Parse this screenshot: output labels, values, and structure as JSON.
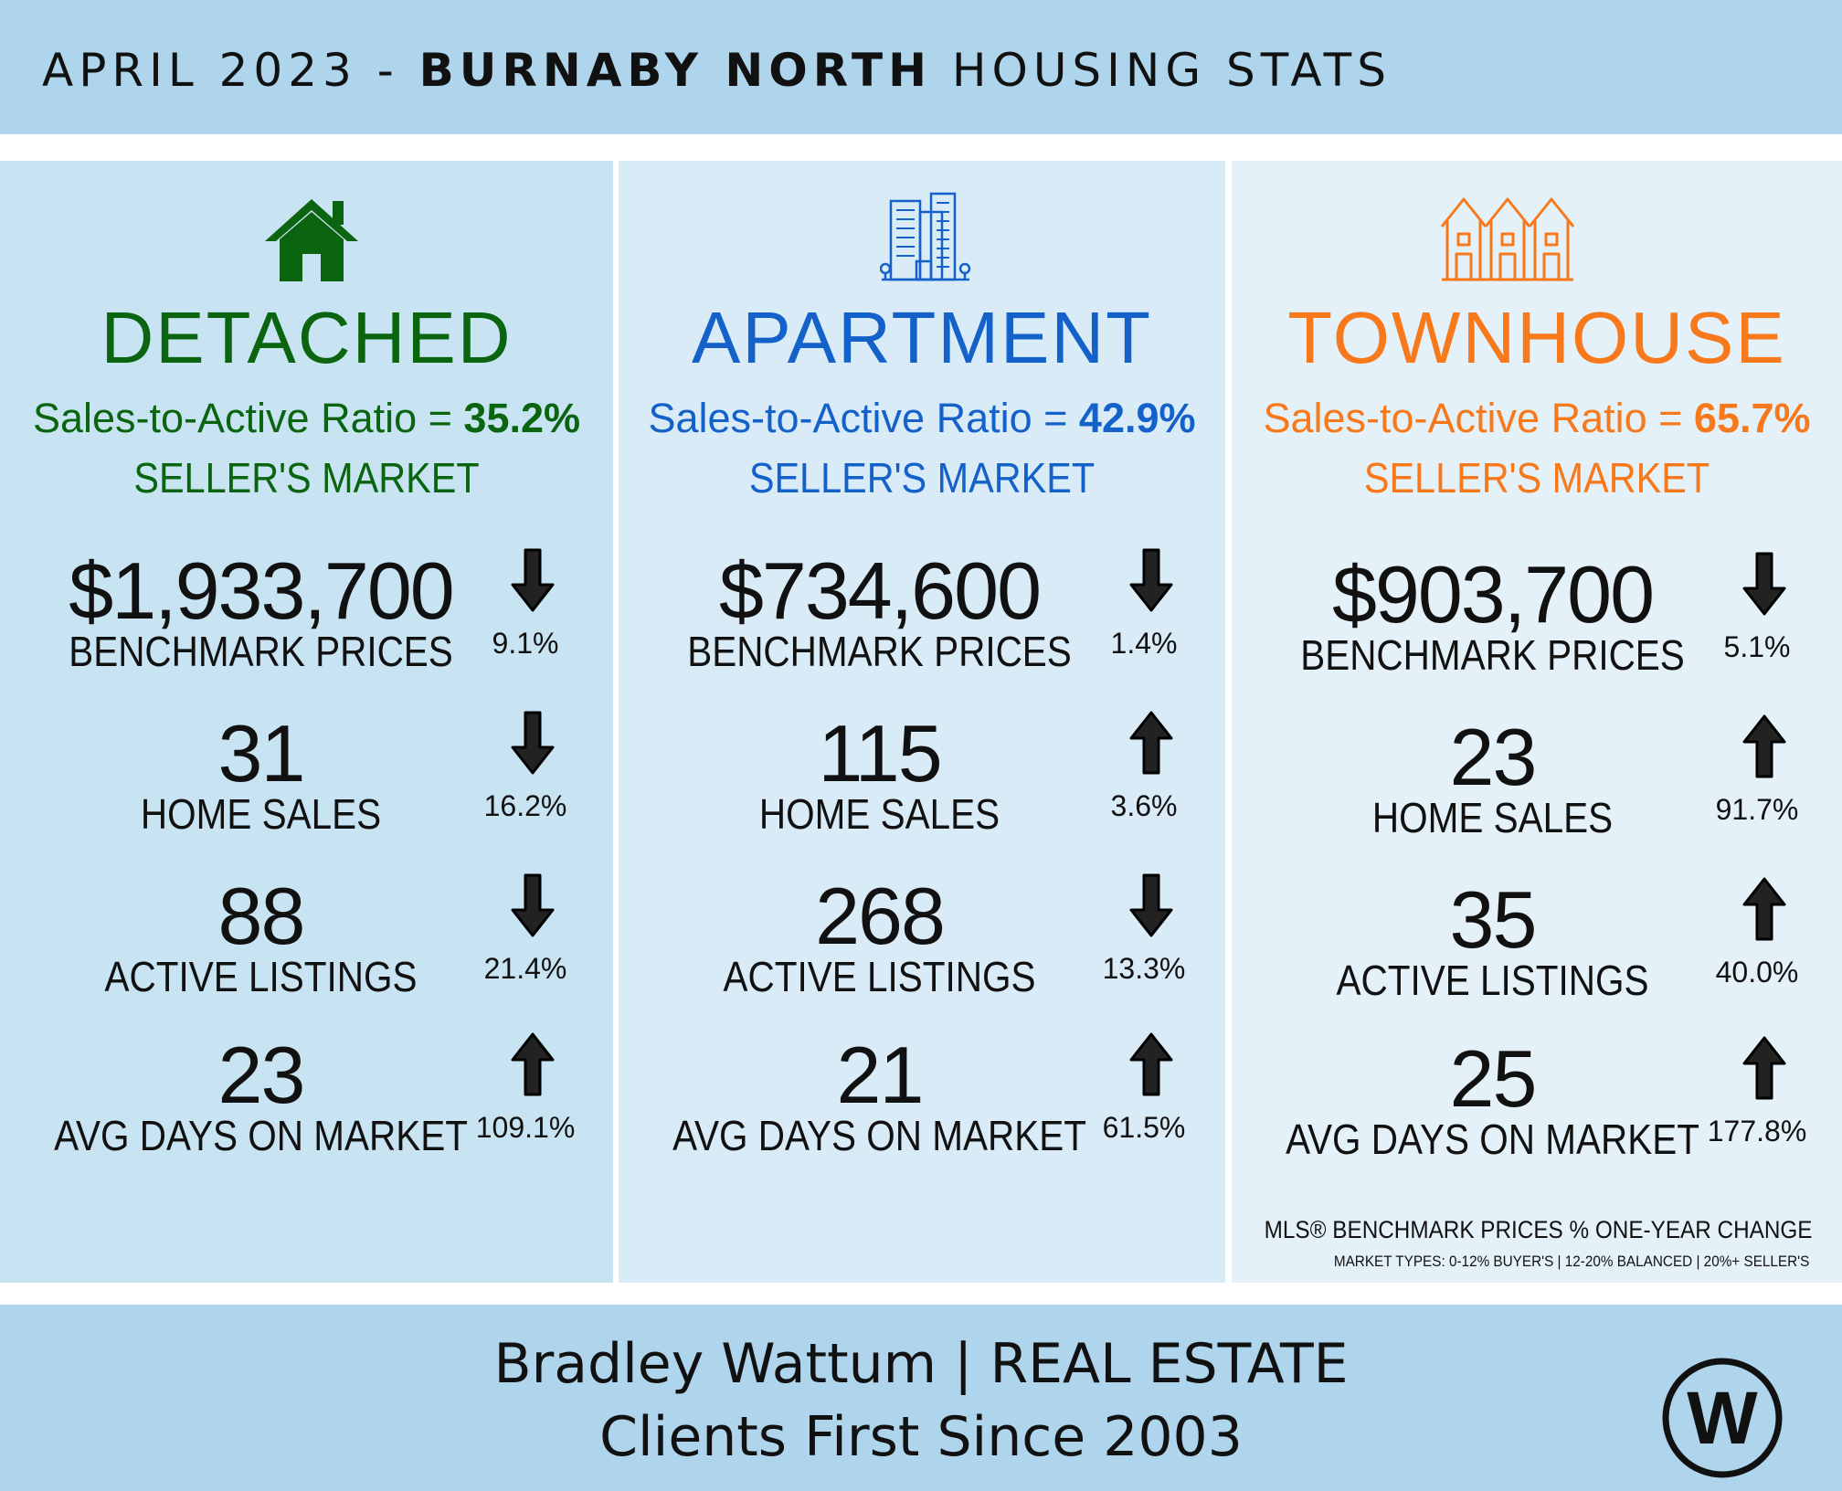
{
  "header": {
    "prefix": "APRIL 2023 - ",
    "area": "BURNABY NORTH",
    "suffix": " HOUSING STATS"
  },
  "columns": [
    {
      "type": "DETACHED",
      "icon": "house-icon",
      "color": "#0a6410",
      "ratio_label": "Sales-to-Active Ratio = ",
      "ratio_value": "35.2%",
      "market": "SELLER'S MARKET",
      "stats": [
        {
          "value": "$1,933,700",
          "label": "BENCHMARK PRICES",
          "direction": "down",
          "change": "9.1%"
        },
        {
          "value": "31",
          "label": "HOME SALES",
          "direction": "down",
          "change": "16.2%"
        },
        {
          "value": "88",
          "label": "ACTIVE LISTINGS",
          "direction": "down",
          "change": "21.4%"
        },
        {
          "value": "23",
          "label": "AVG DAYS ON MARKET",
          "direction": "up",
          "change": "109.1%"
        }
      ]
    },
    {
      "type": "APARTMENT",
      "icon": "apartment-building-icon",
      "color": "#1461c9",
      "ratio_label": "Sales-to-Active Ratio = ",
      "ratio_value": "42.9%",
      "market": "SELLER'S MARKET",
      "stats": [
        {
          "value": "$734,600",
          "label": "BENCHMARK PRICES",
          "direction": "down",
          "change": "1.4%"
        },
        {
          "value": "115",
          "label": "HOME SALES",
          "direction": "up",
          "change": "3.6%"
        },
        {
          "value": "268",
          "label": "ACTIVE LISTINGS",
          "direction": "down",
          "change": "13.3%"
        },
        {
          "value": "21",
          "label": "AVG DAYS ON MARKET",
          "direction": "up",
          "change": "61.5%"
        }
      ]
    },
    {
      "type": "TOWNHOUSE",
      "icon": "townhouse-icon",
      "color": "#f7791b",
      "ratio_label": "Sales-to-Active Ratio = ",
      "ratio_value": "65.7%",
      "market": "SELLER'S MARKET",
      "stats": [
        {
          "value": "$903,700",
          "label": "BENCHMARK PRICES",
          "direction": "down",
          "change": "5.1%"
        },
        {
          "value": "23",
          "label": "HOME SALES",
          "direction": "up",
          "change": "91.7%"
        },
        {
          "value": "35",
          "label": "ACTIVE LISTINGS",
          "direction": "up",
          "change": "40.0%"
        },
        {
          "value": "25",
          "label": "AVG DAYS ON MARKET",
          "direction": "up",
          "change": "177.8%"
        }
      ]
    }
  ],
  "footnotes": {
    "line1": "MLS® BENCHMARK PRICES % ONE-YEAR CHANGE",
    "line2": "MARKET TYPES: 0-12% BUYER'S | 12-20% BALANCED | 20%+ SELLER'S"
  },
  "footer": {
    "line1": "Bradley Wattum | REAL ESTATE",
    "line2": "Clients First Since 2003",
    "logo_icon": "w-logo-icon",
    "logo_letter": "W"
  }
}
